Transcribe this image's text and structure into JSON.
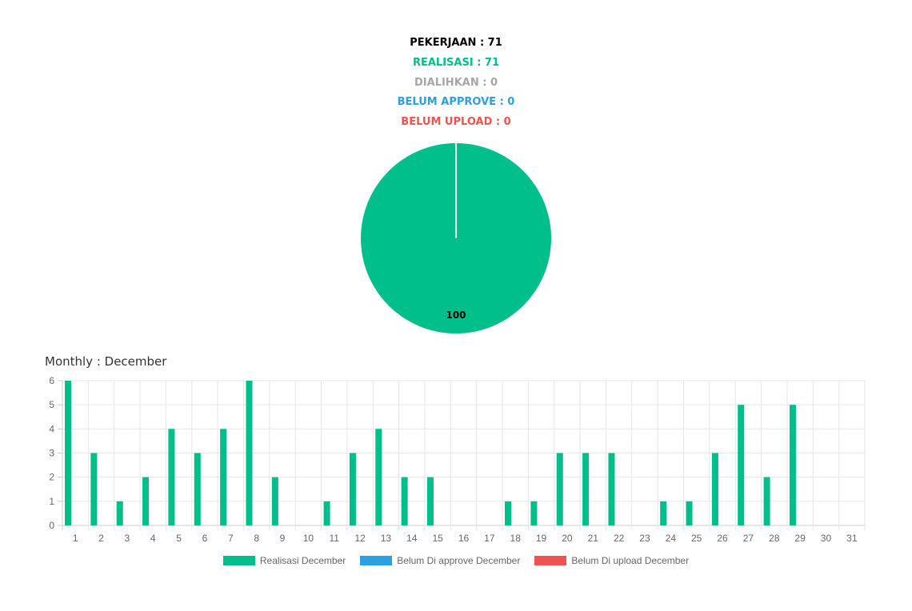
{
  "stats": {
    "pekerjaan": "PEKERJAAN : 71",
    "realisasi": "REALISASI : 71",
    "dialihkan": "DIALIHKAN : 0",
    "belum_approve": "BELUM APPROVE : 0",
    "belum_upload": "BELUM UPLOAD : 0"
  },
  "colors": {
    "black": "#000000",
    "green": "#00bf8a",
    "grey": "#a6a6a6",
    "blue": "#2e9fde",
    "red": "#ef5350"
  },
  "monthly_title": "Monthly : December",
  "chart_data": [
    {
      "type": "pie",
      "slices": [
        {
          "label": "Realisasi",
          "value": 100,
          "color": "#00bf8a"
        }
      ],
      "data_labels": [
        "100"
      ]
    },
    {
      "type": "bar",
      "categories": [
        "1",
        "2",
        "3",
        "4",
        "5",
        "6",
        "7",
        "8",
        "9",
        "10",
        "11",
        "12",
        "13",
        "14",
        "15",
        "16",
        "17",
        "18",
        "19",
        "20",
        "21",
        "22",
        "23",
        "24",
        "25",
        "26",
        "27",
        "28",
        "29",
        "30",
        "31"
      ],
      "series": [
        {
          "name": "Realisasi December",
          "color": "#00bf8a",
          "values": [
            6,
            3,
            1,
            2,
            4,
            3,
            4,
            6,
            2,
            0,
            1,
            3,
            4,
            2,
            2,
            0,
            0,
            1,
            1,
            3,
            3,
            3,
            0,
            1,
            1,
            3,
            5,
            2,
            5,
            0,
            0
          ]
        },
        {
          "name": "Belum Di approve December",
          "color": "#2e9fde",
          "values": [
            0,
            0,
            0,
            0,
            0,
            0,
            0,
            0,
            0,
            0,
            0,
            0,
            0,
            0,
            0,
            0,
            0,
            0,
            0,
            0,
            0,
            0,
            0,
            0,
            0,
            0,
            0,
            0,
            0,
            0,
            0
          ]
        },
        {
          "name": "Belum Di upload December",
          "color": "#ef5350",
          "values": [
            0,
            0,
            0,
            0,
            0,
            0,
            0,
            0,
            0,
            0,
            0,
            0,
            0,
            0,
            0,
            0,
            0,
            0,
            0,
            0,
            0,
            0,
            0,
            0,
            0,
            0,
            0,
            0,
            0,
            0,
            0
          ]
        }
      ],
      "ylim": [
        0,
        6
      ],
      "yticks": [
        "0",
        "1",
        "2",
        "3",
        "4",
        "5",
        "6"
      ],
      "grid": true,
      "legend": "bottom"
    }
  ]
}
